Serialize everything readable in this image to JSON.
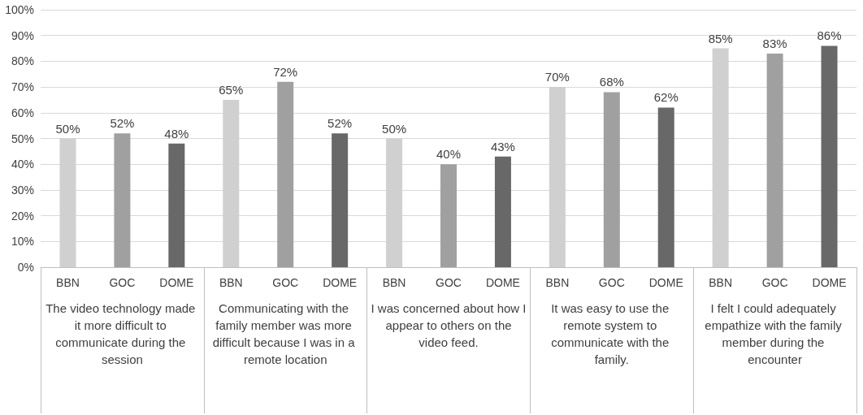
{
  "chart_data": {
    "type": "bar",
    "categories": [
      "The video technology made it more difficult to communicate during the session",
      "Communicating with the family member was more difficult because I was in a remote location",
      "I was concerned about how I appear to others on the video feed.",
      "It was easy to use the remote system to communicate with the family.",
      "I felt I could adequately empathize with the family member during the encounter"
    ],
    "series": [
      {
        "name": "BBN",
        "color": "#d0d0d0",
        "values": [
          50,
          65,
          50,
          70,
          85
        ],
        "value_labels": [
          "50%",
          "65%",
          "50%",
          "70%",
          "85%"
        ]
      },
      {
        "name": "GOC",
        "color": "#a0a0a0",
        "values": [
          52,
          72,
          40,
          68,
          83
        ],
        "value_labels": [
          "52%",
          "72%",
          "40%",
          "68%",
          "83%"
        ]
      },
      {
        "name": "DOME",
        "color": "#686868",
        "values": [
          48,
          52,
          43,
          62,
          86
        ],
        "value_labels": [
          "48%",
          "52%",
          "43%",
          "62%",
          "86%"
        ]
      }
    ],
    "ylim": [
      0,
      100
    ],
    "yticks": [
      {
        "value": 0,
        "label": "0%"
      },
      {
        "value": 10,
        "label": "10%"
      },
      {
        "value": 20,
        "label": "20%"
      },
      {
        "value": 30,
        "label": "30%"
      },
      {
        "value": 40,
        "label": "40%"
      },
      {
        "value": 50,
        "label": "50%"
      },
      {
        "value": 60,
        "label": "60%"
      },
      {
        "value": 70,
        "label": "70%"
      },
      {
        "value": 80,
        "label": "80%"
      },
      {
        "value": 90,
        "label": "90%"
      },
      {
        "value": 100,
        "label": "100%"
      }
    ],
    "grid": "y",
    "legend": false
  }
}
